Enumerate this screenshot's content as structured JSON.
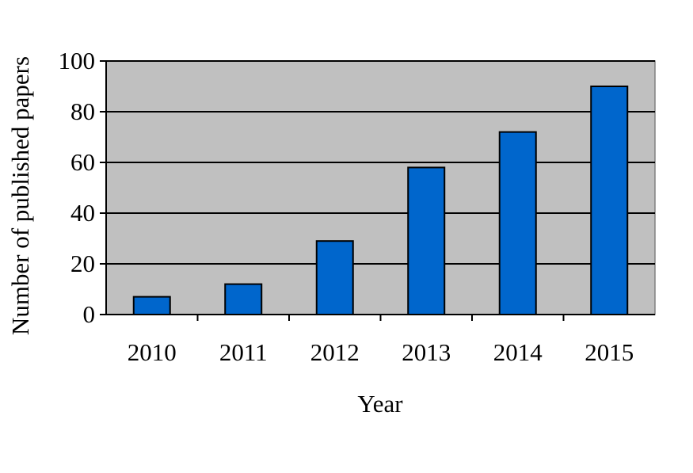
{
  "chart_data": {
    "type": "bar",
    "categories": [
      "2010",
      "2011",
      "2012",
      "2013",
      "2014",
      "2015"
    ],
    "values": [
      7,
      12,
      29,
      58,
      72,
      90
    ],
    "xlabel": "Year",
    "ylabel": "Number of published papers",
    "ylim": [
      0,
      100
    ],
    "yticks": [
      0,
      20,
      40,
      60,
      80,
      100
    ],
    "grid": true,
    "legend": "none",
    "colors": {
      "bar": "#0066CC",
      "plot_background": "#C0C0C0",
      "gridline": "#000000"
    }
  }
}
